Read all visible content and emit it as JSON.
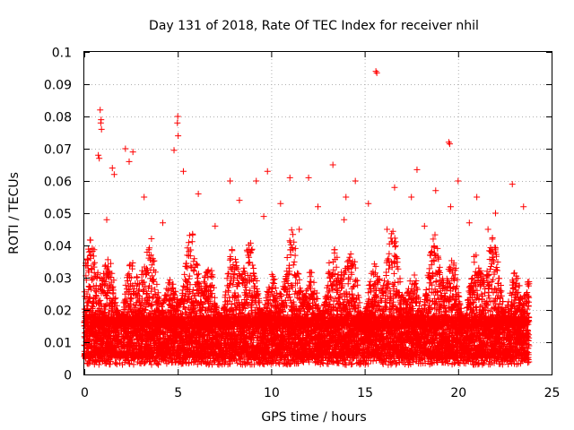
{
  "chart_data": {
    "type": "scatter",
    "title": "Day 131 of 2018, Rate Of TEC Index for receiver nhil",
    "xlabel": "GPS time / hours",
    "ylabel": "ROTI / TECUs",
    "xlim": [
      0,
      25
    ],
    "ylim": [
      0,
      0.1
    ],
    "x_ticks": [
      "0",
      "5",
      "10",
      "15",
      "20",
      "25"
    ],
    "y_ticks": [
      "0",
      "0.01",
      "0.02",
      "0.03",
      "0.04",
      "0.05",
      "0.06",
      "0.07",
      "0.08",
      "0.09",
      "0.1"
    ],
    "grid": true,
    "marker": "plus",
    "series_color": "#ff0000",
    "data_extent_hours": [
      0,
      23.8
    ],
    "dense_band": [
      0.005,
      0.018
    ],
    "typical_peak": 0.045,
    "points": [
      [
        15.6,
        0.094
      ],
      [
        15.65,
        0.0935
      ],
      [
        0.85,
        0.082
      ],
      [
        0.9,
        0.079
      ],
      [
        0.88,
        0.078
      ],
      [
        0.92,
        0.076
      ],
      [
        5.0,
        0.08
      ],
      [
        4.98,
        0.078
      ],
      [
        5.02,
        0.074
      ],
      [
        4.8,
        0.0695
      ],
      [
        19.5,
        0.072
      ],
      [
        19.55,
        0.0715
      ],
      [
        2.2,
        0.07
      ],
      [
        2.6,
        0.069
      ],
      [
        0.75,
        0.068
      ],
      [
        0.8,
        0.067
      ],
      [
        2.4,
        0.066
      ],
      [
        1.5,
        0.064
      ],
      [
        5.3,
        0.063
      ],
      [
        1.6,
        0.062
      ],
      [
        13.3,
        0.065
      ],
      [
        9.8,
        0.063
      ],
      [
        17.8,
        0.0635
      ],
      [
        20.0,
        0.06
      ],
      [
        11.0,
        0.061
      ],
      [
        12.0,
        0.061
      ],
      [
        7.8,
        0.06
      ],
      [
        9.2,
        0.06
      ],
      [
        22.9,
        0.059
      ],
      [
        14.5,
        0.06
      ],
      [
        16.6,
        0.058
      ],
      [
        18.8,
        0.057
      ],
      [
        21.0,
        0.055
      ],
      [
        3.2,
        0.055
      ],
      [
        6.1,
        0.056
      ],
      [
        8.3,
        0.054
      ],
      [
        10.5,
        0.053
      ],
      [
        12.5,
        0.052
      ],
      [
        14.0,
        0.055
      ],
      [
        15.2,
        0.053
      ],
      [
        17.5,
        0.055
      ],
      [
        19.6,
        0.052
      ],
      [
        22.0,
        0.05
      ],
      [
        23.5,
        0.052
      ],
      [
        1.2,
        0.048
      ],
      [
        4.2,
        0.047
      ],
      [
        7.0,
        0.046
      ],
      [
        9.6,
        0.049
      ],
      [
        11.5,
        0.045
      ],
      [
        13.9,
        0.048
      ],
      [
        16.2,
        0.045
      ],
      [
        18.2,
        0.046
      ],
      [
        20.6,
        0.047
      ],
      [
        21.6,
        0.045
      ]
    ]
  }
}
